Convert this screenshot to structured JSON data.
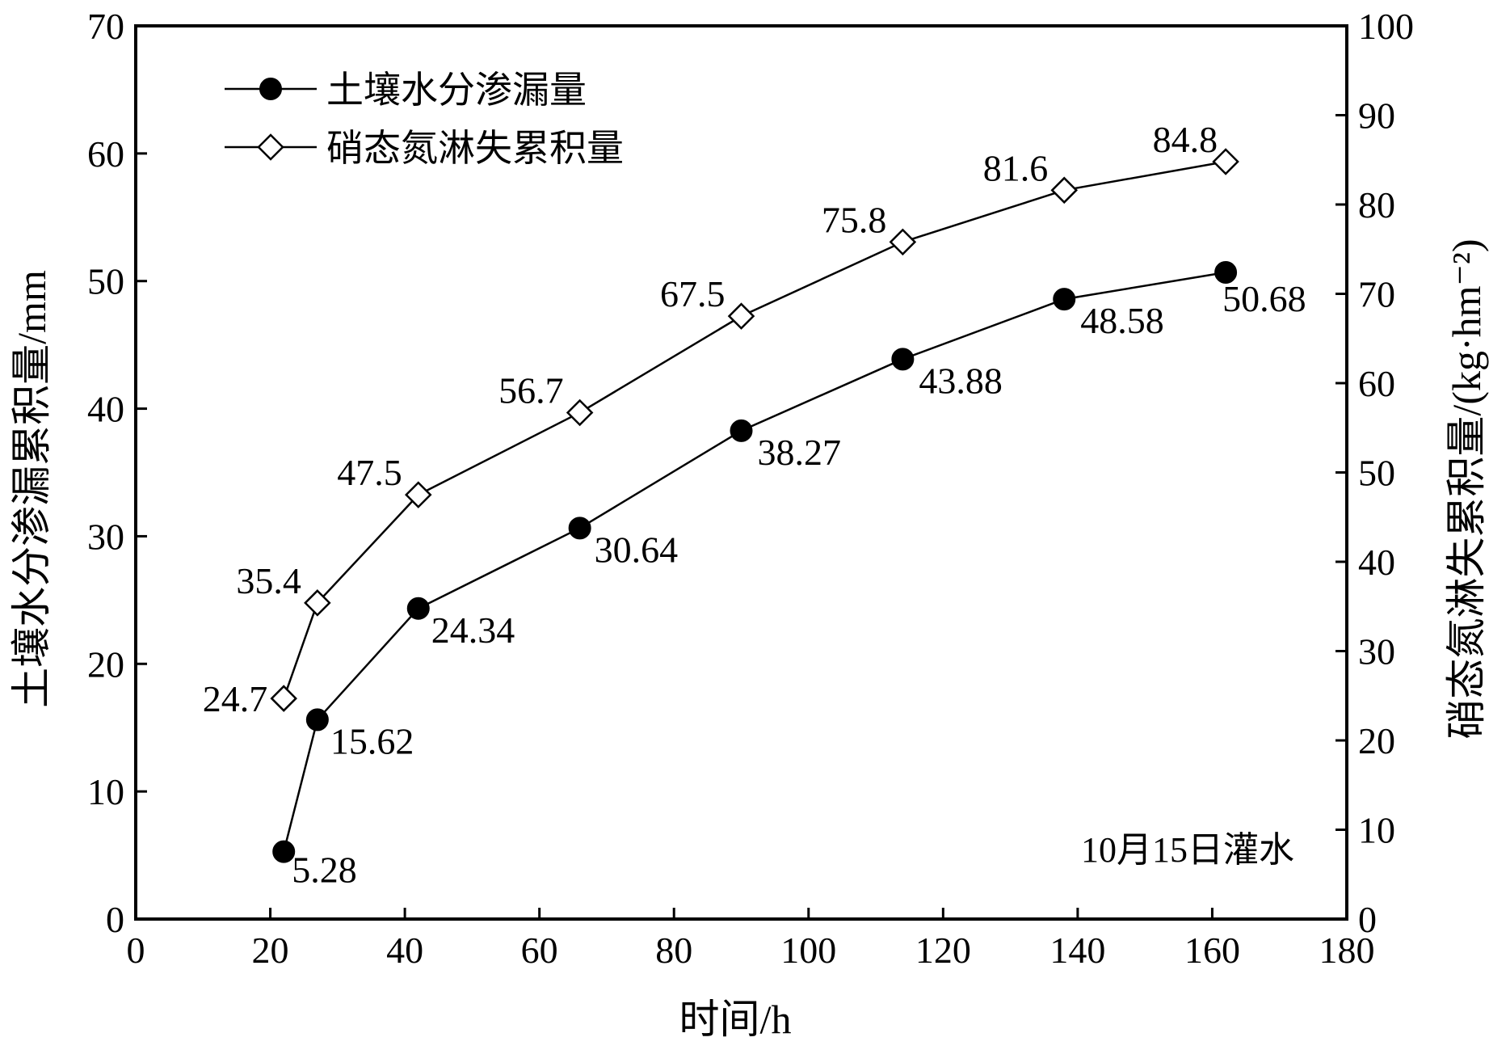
{
  "chart_data": {
    "type": "line",
    "xlabel": "时间/h",
    "ylabel_left": "土壤水分渗漏累积量/mm",
    "ylabel_right": "硝态氮淋失累积量/(kg·hm⁻²)",
    "xlim": [
      0,
      180
    ],
    "xticks": [
      "0",
      "20",
      "40",
      "60",
      "80",
      "100",
      "120",
      "140",
      "160",
      "180"
    ],
    "ylim_left": [
      0,
      70
    ],
    "yticks_left": [
      "0",
      "10",
      "20",
      "30",
      "40",
      "50",
      "60",
      "70"
    ],
    "ylim_right": [
      0,
      100
    ],
    "yticks_right": [
      "0",
      "10",
      "20",
      "30",
      "40",
      "50",
      "60",
      "70",
      "80",
      "90",
      "100"
    ],
    "grid": false,
    "legend_position": "top-left",
    "annotation": "10月15日灌水",
    "series": [
      {
        "name": "土壤水分渗漏量",
        "axis": "left",
        "marker": "filled-circle",
        "color": "#000000",
        "x": [
          22,
          27,
          42,
          66,
          90,
          114,
          138,
          162
        ],
        "values": [
          5.28,
          15.62,
          24.34,
          30.64,
          38.27,
          43.88,
          48.58,
          50.68
        ],
        "labels": [
          "5.28",
          "15.62",
          "24.34",
          "30.64",
          "38.27",
          "43.88",
          "48.58",
          "50.68"
        ]
      },
      {
        "name": "硝态氮淋失累积量",
        "axis": "right",
        "marker": "open-diamond",
        "color": "#000000",
        "x": [
          22,
          27,
          42,
          66,
          90,
          114,
          138,
          162
        ],
        "values": [
          24.7,
          35.4,
          47.5,
          56.7,
          67.5,
          75.8,
          81.6,
          84.8
        ],
        "labels": [
          "24.7",
          "35.4",
          "47.5",
          "56.7",
          "67.5",
          "75.8",
          "81.6",
          "84.8"
        ]
      }
    ]
  }
}
